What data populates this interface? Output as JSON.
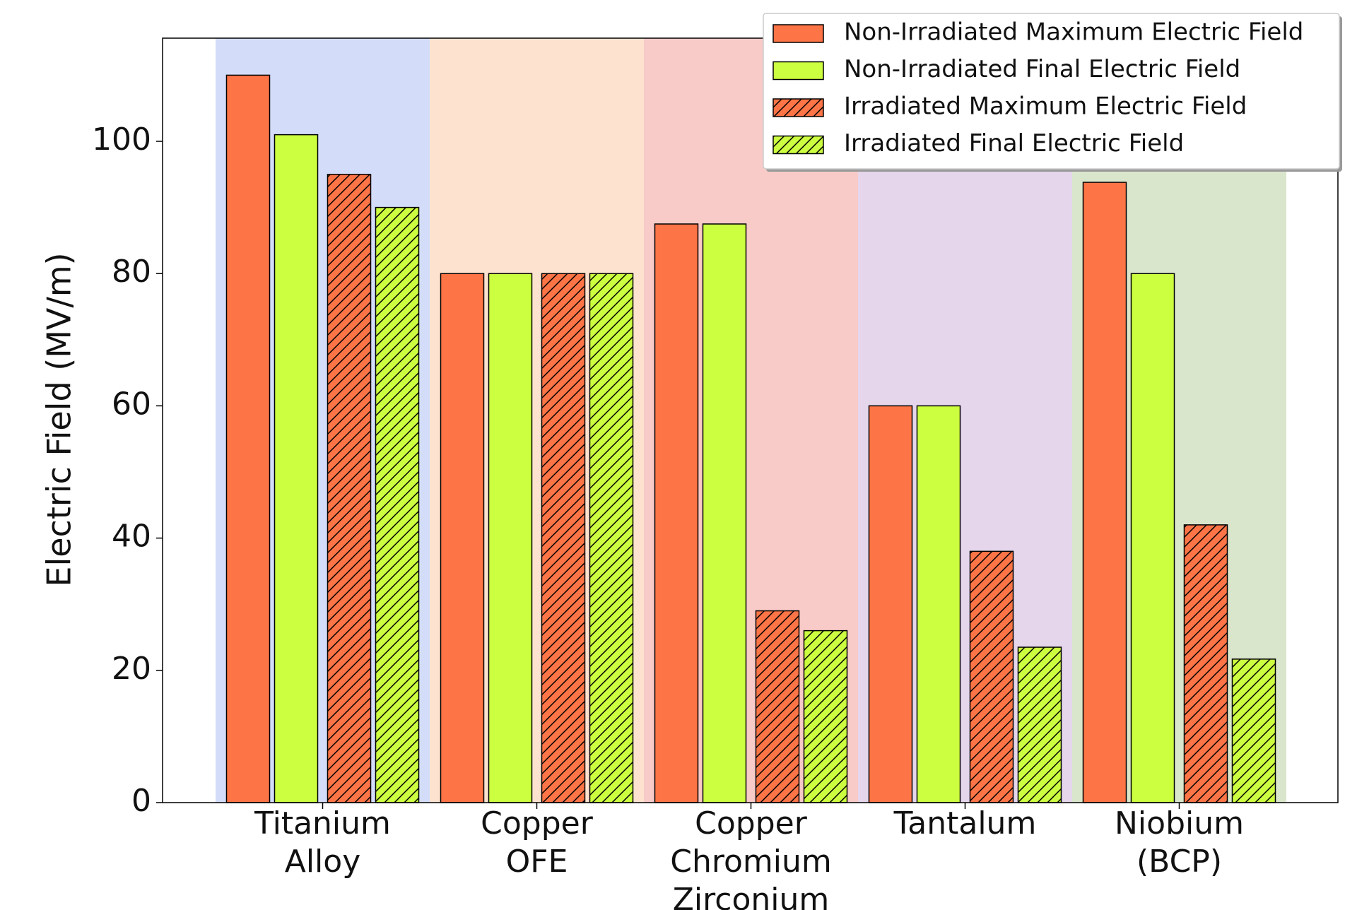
{
  "chart_data": {
    "type": "bar",
    "y_label": "Electric Field (MV/m)",
    "categories": [
      "Titanium\nAlloy",
      "Copper\nOFE",
      "Copper\nChromium\nZirconium",
      "Tantalum",
      "Niobium\n(BCP)"
    ],
    "background_colors": [
      "#d3ddf9",
      "#fde3cf",
      "#f8cac8",
      "#e5d6ec",
      "#d9e6cc"
    ],
    "series": [
      {
        "name": "Non-Irradiated Maximum Electric Field",
        "color": "#fd7446",
        "hatch": false,
        "values": [
          110,
          80,
          87.5,
          60,
          93.8
        ]
      },
      {
        "name": "Non-Irradiated Final Electric Field",
        "color": "#ccff40",
        "hatch": false,
        "values": [
          101,
          80,
          87.5,
          60,
          80
        ]
      },
      {
        "name": "Irradiated Maximum Electric Field",
        "color": "#fd7446",
        "hatch": true,
        "values": [
          95,
          80,
          29,
          38,
          42
        ]
      },
      {
        "name": "Irradiated Final Electric Field",
        "color": "#ccff40",
        "hatch": true,
        "values": [
          90,
          80,
          26,
          23.5,
          21.7
        ]
      }
    ],
    "ylim": [
      0,
      115.6
    ],
    "yticks": [
      0,
      20,
      40,
      60,
      80,
      100
    ],
    "legend": "upper right"
  }
}
